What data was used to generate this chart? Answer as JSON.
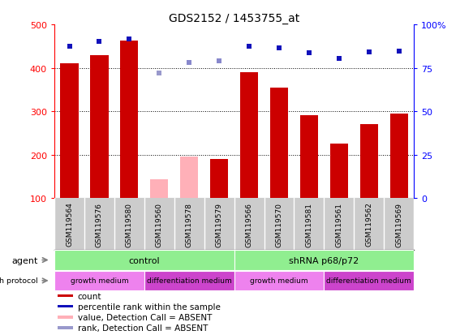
{
  "title": "GDS2152 / 1453755_at",
  "samples": [
    "GSM119564",
    "GSM119576",
    "GSM119580",
    "GSM119560",
    "GSM119578",
    "GSM119579",
    "GSM119566",
    "GSM119570",
    "GSM119581",
    "GSM119561",
    "GSM119562",
    "GSM119569"
  ],
  "count_values": [
    410,
    430,
    462,
    null,
    null,
    190,
    390,
    355,
    290,
    225,
    270,
    295
  ],
  "count_absent": [
    null,
    null,
    null,
    143,
    195,
    null,
    null,
    null,
    null,
    null,
    null,
    null
  ],
  "percentile_values": [
    87.5,
    90,
    91.5,
    null,
    null,
    null,
    87.5,
    86.5,
    83.5,
    80.5,
    84,
    84.5
  ],
  "percentile_absent": [
    null,
    null,
    null,
    null,
    78,
    79,
    null,
    null,
    null,
    null,
    null,
    null
  ],
  "rank_absent": [
    null,
    null,
    null,
    72,
    null,
    null,
    null,
    null,
    null,
    null,
    null,
    null
  ],
  "ylim_left": [
    100,
    500
  ],
  "ylim_right": [
    0,
    100
  ],
  "yticks_left": [
    100,
    200,
    300,
    400,
    500
  ],
  "ytick_labels_left": [
    "100",
    "200",
    "300",
    "400",
    "500"
  ],
  "yticks_right": [
    0,
    25,
    50,
    75,
    100
  ],
  "ytick_labels_right": [
    "0",
    "25",
    "50",
    "75",
    "100%"
  ],
  "gridlines": [
    200,
    300,
    400
  ],
  "bar_color": "#CC0000",
  "bar_absent_color": "#FFB0B8",
  "dot_color": "#1111BB",
  "dot_absent_color": "#8888CC",
  "rank_absent_color": "#9999CC",
  "agent_control_color": "#90EE90",
  "agent_shrna_color": "#90EE90",
  "agent_groups": [
    {
      "label": "control",
      "start": 0,
      "end": 5
    },
    {
      "label": "shRNA p68/p72",
      "start": 6,
      "end": 11
    }
  ],
  "growth_groups": [
    {
      "label": "growth medium",
      "start": 0,
      "end": 2,
      "color": "#EE82EE"
    },
    {
      "label": "differentiation medium",
      "start": 3,
      "end": 5,
      "color": "#CC44CC"
    },
    {
      "label": "growth medium",
      "start": 6,
      "end": 8,
      "color": "#EE82EE"
    },
    {
      "label": "differentiation medium",
      "start": 9,
      "end": 11,
      "color": "#CC44CC"
    }
  ],
  "legend_items": [
    {
      "label": "count",
      "color": "#CC0000"
    },
    {
      "label": "percentile rank within the sample",
      "color": "#1111BB"
    },
    {
      "label": "value, Detection Call = ABSENT",
      "color": "#FFB0B8"
    },
    {
      "label": "rank, Detection Call = ABSENT",
      "color": "#9999CC"
    }
  ],
  "sample_label_bg": "#CCCCCC",
  "chart_bg": "#FFFFFF"
}
